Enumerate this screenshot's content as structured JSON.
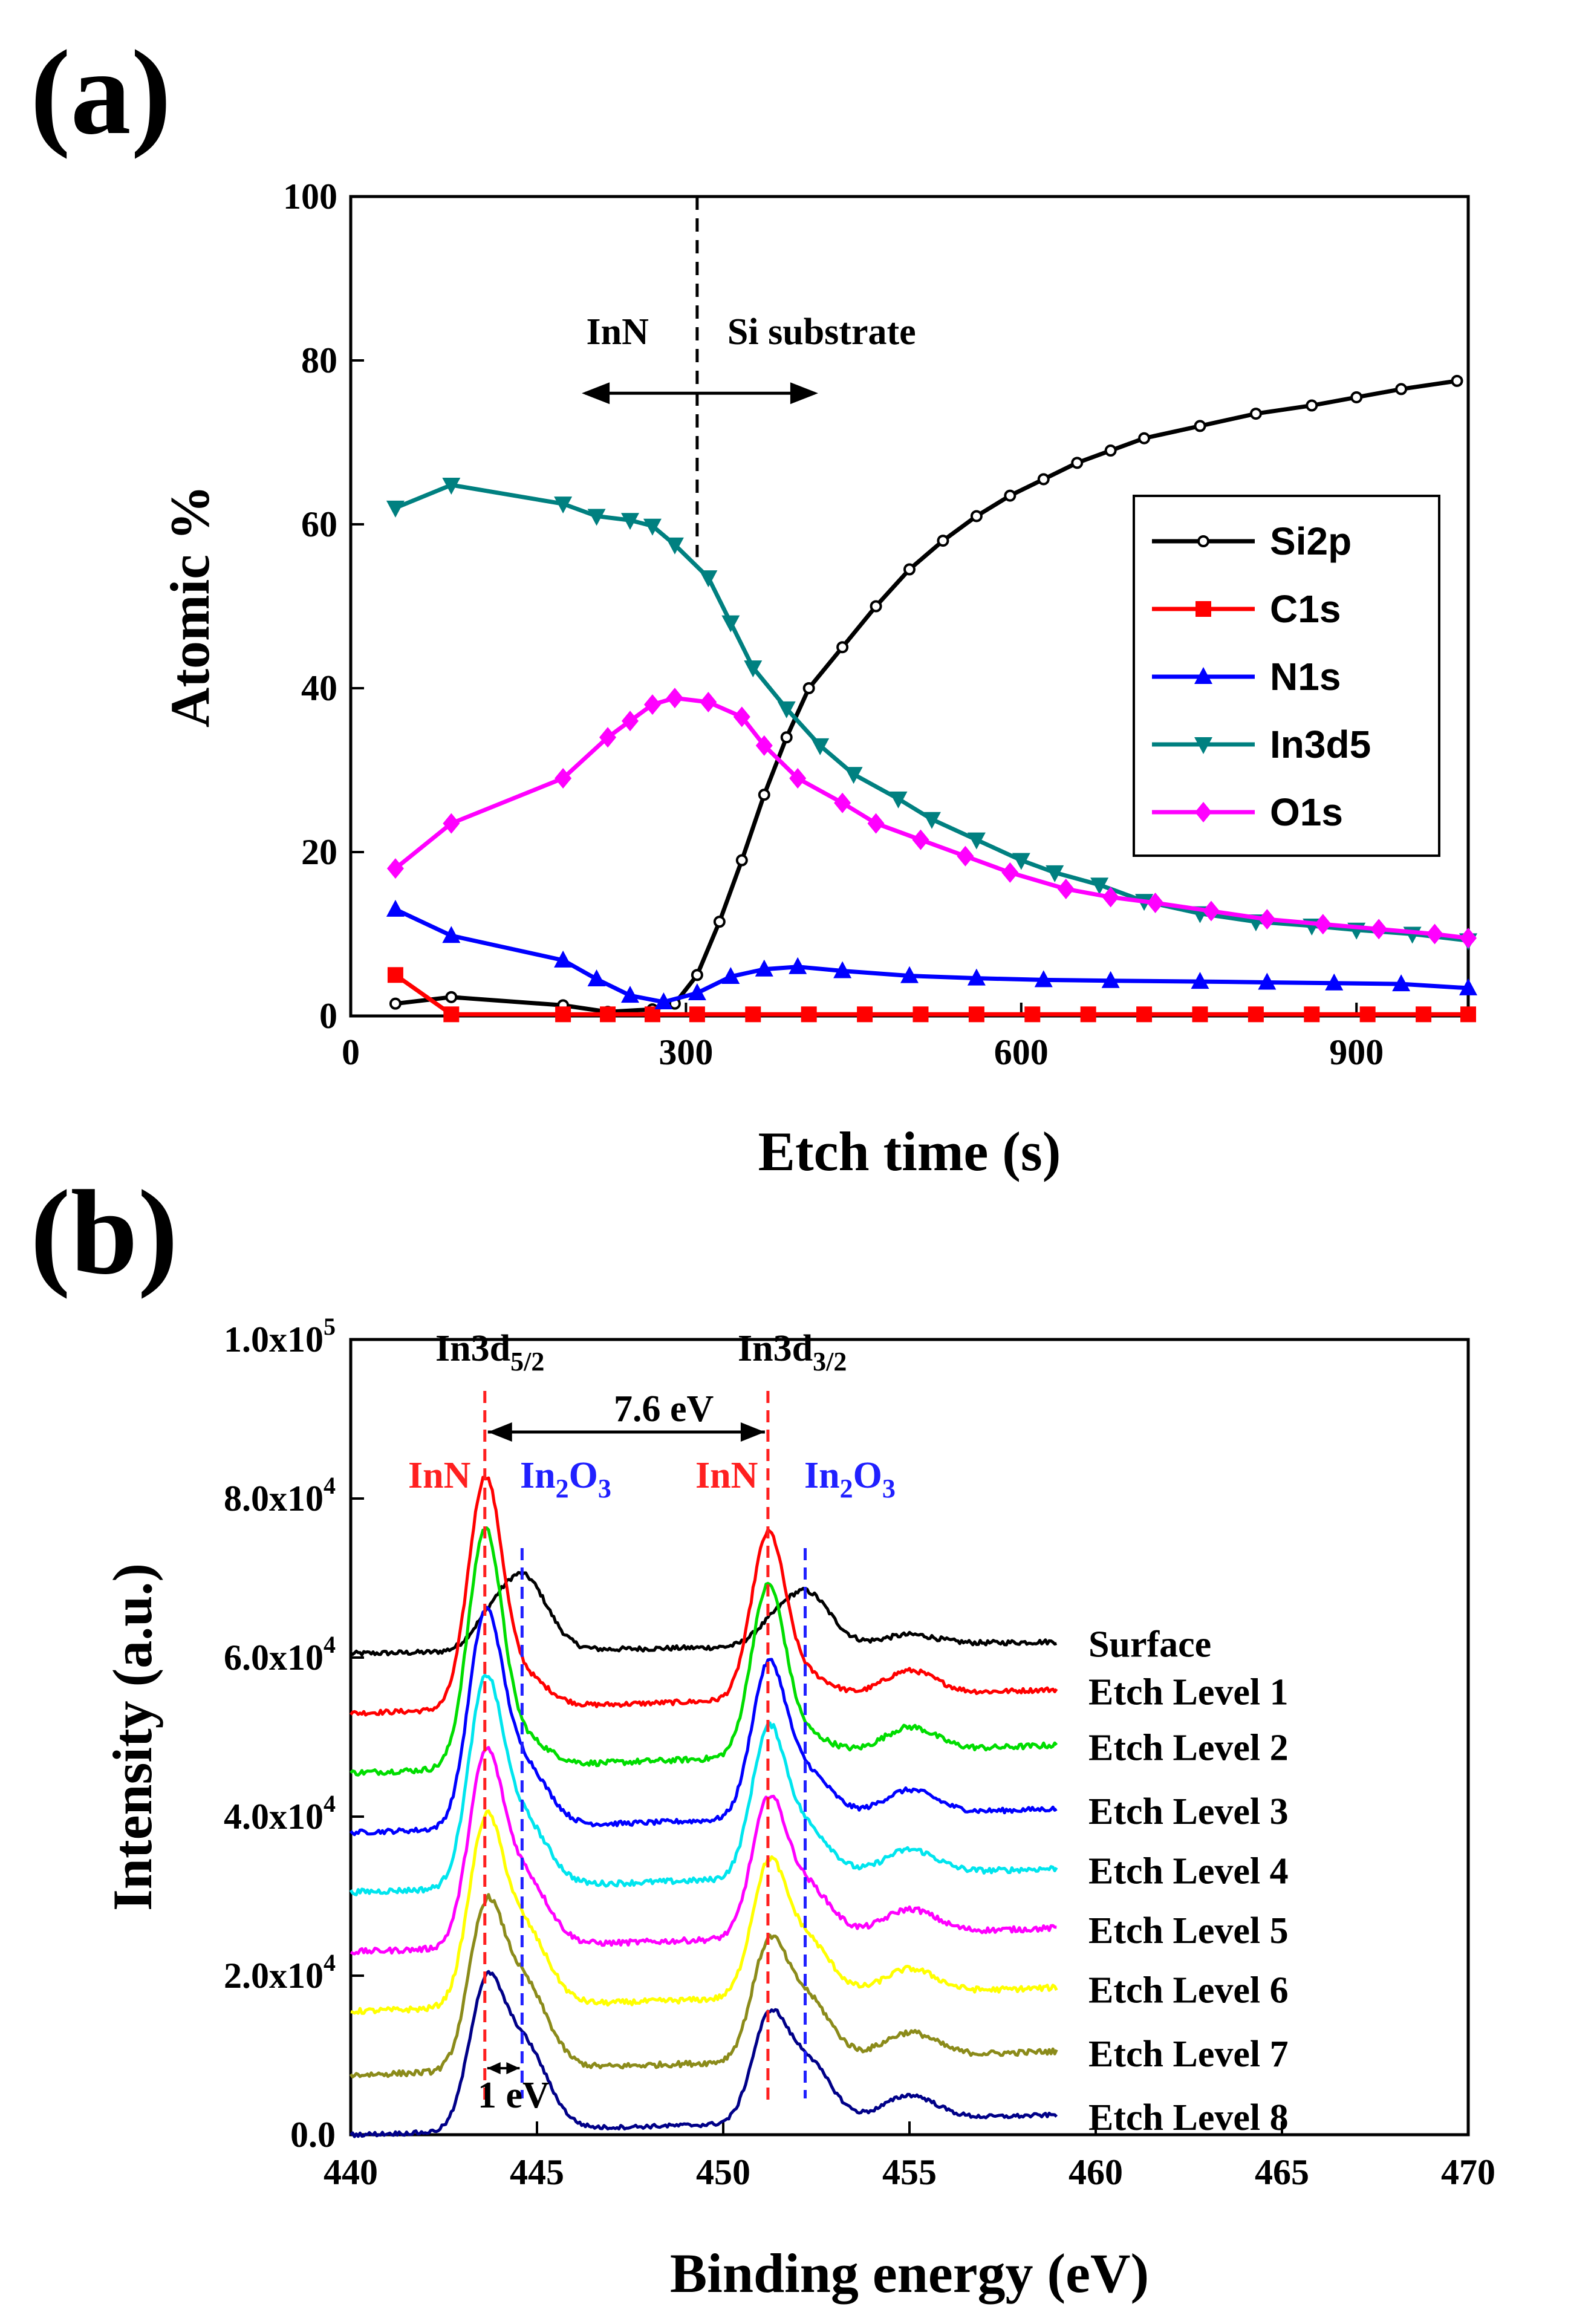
{
  "panel_labels": {
    "a": "(a)",
    "b": "(b)"
  },
  "chart_data": [
    {
      "type": "line",
      "panel": "(a)",
      "xlabel": "Etch time (s)",
      "ylabel": "Atomic %",
      "xlim": [
        0,
        1000
      ],
      "ylim": [
        0,
        100
      ],
      "xticks": [
        0,
        300,
        600,
        900
      ],
      "yticks": [
        0,
        20,
        40,
        60,
        80,
        100
      ],
      "legend_position": "right",
      "annotations": {
        "left_region": "InN",
        "right_region": "Si substrate",
        "boundary_x": 310
      },
      "series": [
        {
          "name": "Si2p",
          "color": "#000000",
          "marker": "circle",
          "x": [
            40,
            90,
            190,
            230,
            270,
            290,
            310,
            330,
            350,
            370,
            390,
            410,
            440,
            470,
            500,
            530,
            560,
            590,
            620,
            650,
            680,
            710,
            760,
            810,
            860,
            900,
            940,
            990
          ],
          "y": [
            1.5,
            2.3,
            1.3,
            0.5,
            0.8,
            1.5,
            5,
            11.5,
            19,
            27,
            34,
            40,
            45,
            50,
            54.5,
            58,
            61,
            63.5,
            65.5,
            67.5,
            69,
            70.5,
            72,
            73.5,
            74.5,
            75.5,
            76.5,
            77.5
          ]
        },
        {
          "name": "C1s",
          "color": "#ff0000",
          "marker": "square",
          "x": [
            40,
            90,
            190,
            230,
            270,
            310,
            360,
            410,
            460,
            510,
            560,
            610,
            660,
            710,
            760,
            810,
            860,
            910,
            960,
            1000
          ],
          "y": [
            5,
            0.2,
            0.2,
            0.2,
            0.2,
            0.2,
            0.2,
            0.2,
            0.2,
            0.2,
            0.2,
            0.2,
            0.2,
            0.2,
            0.2,
            0.2,
            0.2,
            0.2,
            0.2,
            0.2
          ]
        },
        {
          "name": "N1s",
          "color": "#0000ff",
          "marker": "triangle-up",
          "x": [
            40,
            90,
            190,
            220,
            250,
            280,
            310,
            340,
            370,
            400,
            440,
            500,
            560,
            620,
            680,
            760,
            820,
            880,
            940,
            1000
          ],
          "y": [
            13,
            9.8,
            6.8,
            4.5,
            2.5,
            1.7,
            2.8,
            4.8,
            5.7,
            6,
            5.5,
            4.9,
            4.6,
            4.4,
            4.3,
            4.2,
            4.1,
            4.0,
            3.9,
            3.4
          ]
        },
        {
          "name": "In3d5",
          "color": "#008080",
          "marker": "triangle-down",
          "x": [
            40,
            90,
            190,
            220,
            250,
            270,
            290,
            320,
            340,
            360,
            390,
            420,
            450,
            490,
            520,
            560,
            600,
            630,
            670,
            710,
            760,
            810,
            860,
            900,
            950,
            1000
          ],
          "y": [
            62,
            64.8,
            62.5,
            61,
            60.5,
            59.8,
            57.5,
            53.5,
            48,
            42.5,
            37.5,
            33,
            29.5,
            26.5,
            24,
            21.5,
            19,
            17.5,
            16,
            14,
            12.5,
            11.5,
            11,
            10.5,
            10,
            9.2
          ]
        },
        {
          "name": "O1s",
          "color": "#ff00ff",
          "marker": "diamond",
          "x": [
            40,
            90,
            190,
            230,
            250,
            270,
            290,
            320,
            350,
            370,
            400,
            440,
            470,
            510,
            550,
            590,
            640,
            680,
            720,
            770,
            820,
            870,
            920,
            970,
            1000
          ],
          "y": [
            18,
            23.5,
            29,
            34,
            36,
            38,
            38.8,
            38.3,
            36.5,
            33,
            29,
            26,
            23.5,
            21.5,
            19.5,
            17.5,
            15.5,
            14.5,
            13.8,
            12.8,
            11.8,
            11.2,
            10.6,
            10,
            9.5
          ]
        }
      ]
    },
    {
      "type": "line",
      "panel": "(b)",
      "xlabel": "Binding energy (eV)",
      "ylabel": "Intensity (a.u.)",
      "xlim": [
        440,
        470
      ],
      "ylim": [
        0,
        100000
      ],
      "xticks": [
        440,
        445,
        450,
        455,
        460,
        465,
        470
      ],
      "ytick_labels": [
        "0.0",
        "2.0x10^4",
        "4.0x10^4",
        "6.0x10^4",
        "8.0x10^4",
        "1.0x10^5"
      ],
      "peaks": {
        "InN_1": 443.6,
        "In2O3_1": 444.6,
        "InN_2": 451.2,
        "In2O3_2": 452.2
      },
      "annotations": {
        "peak1_title": "In3d",
        "peak1_sub": "5/2",
        "peak2_title": "In3d",
        "peak2_sub": "3/2",
        "split": "7.6 eV",
        "shift": "1 eV",
        "inn_label": "InN",
        "in2o3_prefix": "In",
        "in2o3_sub1": "2",
        "in2o3_mid": "O",
        "in2o3_sub2": "3"
      },
      "series": [
        {
          "name": "Surface",
          "color": "#000000",
          "baseline": 60500,
          "end": 62000,
          "inn_amp": 2000,
          "oxide_amp": 9500,
          "noise": 600
        },
        {
          "name": "Etch Level 1",
          "color": "#ff0000",
          "baseline": 53000,
          "end": 56000,
          "inn_amp": 28000,
          "oxide_amp": 4000,
          "noise": 600
        },
        {
          "name": "Etch Level 2",
          "color": "#00dd00",
          "baseline": 45500,
          "end": 49000,
          "inn_amp": 29000,
          "oxide_amp": 3500,
          "noise": 700
        },
        {
          "name": "Etch Level 3",
          "color": "#0000ff",
          "baseline": 38000,
          "end": 41000,
          "inn_amp": 25000,
          "oxide_amp": 8000,
          "noise": 600
        },
        {
          "name": "Etch Level 4",
          "color": "#00e5ee",
          "baseline": 30500,
          "end": 33500,
          "inn_amp": 24000,
          "oxide_amp": 8500,
          "noise": 700
        },
        {
          "name": "Etch Level 5",
          "color": "#ff00ff",
          "baseline": 23000,
          "end": 26000,
          "inn_amp": 22000,
          "oxide_amp": 9000,
          "noise": 700
        },
        {
          "name": "Etch Level 6",
          "color": "#ffff00",
          "baseline": 15500,
          "end": 18500,
          "inn_amp": 21000,
          "oxide_amp": 10000,
          "noise": 700
        },
        {
          "name": "Etch Level 7",
          "color": "#8b8b1a",
          "baseline": 7500,
          "end": 10500,
          "inn_amp": 18000,
          "oxide_amp": 11000,
          "noise": 700
        },
        {
          "name": "Etch Level 8",
          "color": "#000088",
          "baseline": 0,
          "end": 2500,
          "inn_amp": 16000,
          "oxide_amp": 11000,
          "noise": 500
        }
      ]
    }
  ]
}
